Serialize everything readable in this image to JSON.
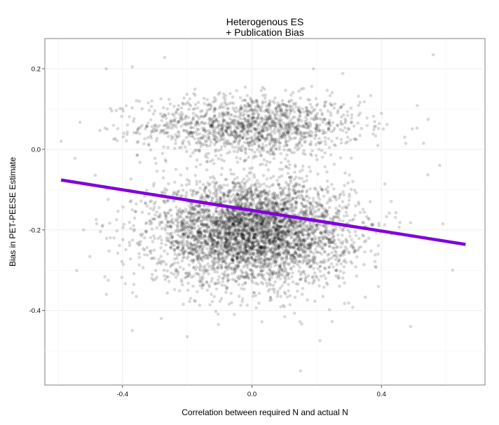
{
  "chart_data": {
    "type": "scatter",
    "title": [
      "Heterogenous ES",
      "+ Publication Bias"
    ],
    "xlabel": "Correlation between required N and actual N",
    "ylabel": "Bias in PET-PEESE Estimate",
    "xlim": [
      -0.64,
      0.72
    ],
    "ylim": [
      -0.585,
      0.275
    ],
    "x_ticks": [
      -0.4,
      0.0,
      0.4
    ],
    "x_tick_labels": [
      "-0.4",
      "0.0",
      "0.4"
    ],
    "y_ticks": [
      0.2,
      0.0,
      -0.2,
      -0.4
    ],
    "y_tick_labels": [
      "0.2",
      "0.0",
      "-0.2",
      "-0.4"
    ],
    "grid": true,
    "point_color": "#000000",
    "point_opacity": 0.15,
    "fit_line": {
      "x": [
        -0.59,
        0.66
      ],
      "y": [
        -0.076,
        -0.236
      ],
      "color": "#8000dd"
    },
    "clusters": [
      {
        "name_hint": "upper band",
        "n": 1400,
        "x_mean": 0.0,
        "x_sd": 0.17,
        "y_mean": 0.058,
        "y_sd": 0.038
      },
      {
        "name_hint": "lower band",
        "n": 4200,
        "x_mean": 0.0,
        "x_sd": 0.15,
        "y_mean": -0.205,
        "y_sd": 0.065
      }
    ],
    "outliers": [
      {
        "x": -0.45,
        "y": 0.2
      },
      {
        "x": -0.37,
        "y": 0.205
      },
      {
        "x": -0.27,
        "y": 0.228
      },
      {
        "x": 0.56,
        "y": 0.235
      },
      {
        "x": 0.19,
        "y": 0.2
      },
      {
        "x": -0.59,
        "y": 0.02
      },
      {
        "x": 0.53,
        "y": 0.015
      },
      {
        "x": 0.58,
        "y": -0.04
      },
      {
        "x": -0.45,
        "y": -0.36
      },
      {
        "x": -0.37,
        "y": -0.45
      },
      {
        "x": -0.2,
        "y": -0.465
      },
      {
        "x": 0.21,
        "y": -0.475
      },
      {
        "x": 0.15,
        "y": -0.55
      },
      {
        "x": 0.49,
        "y": -0.44
      },
      {
        "x": 0.62,
        "y": -0.3
      },
      {
        "x": 0.59,
        "y": -0.185
      },
      {
        "x": -0.52,
        "y": -0.2
      },
      {
        "x": -0.28,
        "y": -0.42
      }
    ]
  }
}
